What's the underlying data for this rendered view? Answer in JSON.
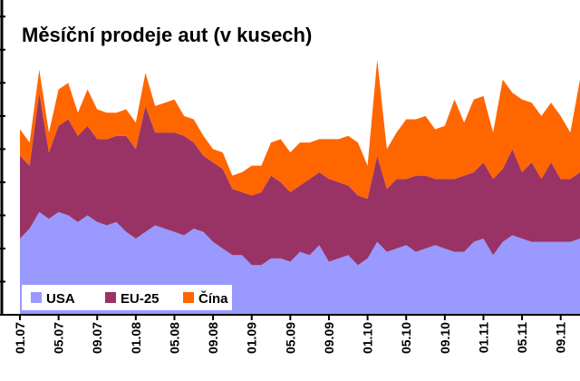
{
  "chart_data": {
    "type": "area",
    "stacked": true,
    "title": "Měsíční prodeje aut (v kusech)",
    "xlabel": "",
    "ylabel": "",
    "grid": false,
    "legend_position": "bottom-left",
    "x_tick_labels": [
      "01.07",
      "05.07",
      "09.07",
      "01.08",
      "05.08",
      "09.08",
      "01.09",
      "05.09",
      "09.09",
      "01.10",
      "05.10",
      "09.10",
      "01.11",
      "05.11",
      "09.11"
    ],
    "x": [
      "01.07",
      "02.07",
      "03.07",
      "04.07",
      "05.07",
      "06.07",
      "07.07",
      "08.07",
      "09.07",
      "10.07",
      "11.07",
      "12.07",
      "01.08",
      "02.08",
      "03.08",
      "04.08",
      "05.08",
      "06.08",
      "07.08",
      "08.08",
      "09.08",
      "10.08",
      "11.08",
      "12.08",
      "01.09",
      "02.09",
      "03.09",
      "04.09",
      "05.09",
      "06.09",
      "07.09",
      "08.09",
      "09.09",
      "10.09",
      "11.09",
      "12.09",
      "01.10",
      "02.10",
      "03.10",
      "04.10",
      "05.10",
      "06.10",
      "07.10",
      "08.10",
      "09.10",
      "10.10",
      "11.10",
      "12.10",
      "01.11",
      "02.11",
      "03.11",
      "04.11",
      "05.11",
      "06.11",
      "07.11",
      "08.11",
      "09.11",
      "10.11",
      "11.11"
    ],
    "series": [
      {
        "name": "USA",
        "color": "#9999ff",
        "values": [
          2.3,
          2.6,
          3.1,
          2.9,
          3.1,
          3.0,
          2.8,
          3.0,
          2.8,
          2.7,
          2.8,
          2.5,
          2.3,
          2.5,
          2.7,
          2.6,
          2.5,
          2.4,
          2.6,
          2.5,
          2.2,
          2.0,
          1.8,
          1.8,
          1.5,
          1.5,
          1.7,
          1.7,
          1.6,
          1.9,
          1.8,
          2.1,
          1.6,
          1.7,
          1.8,
          1.5,
          1.7,
          2.2,
          1.9,
          2.0,
          2.1,
          1.9,
          2.0,
          2.1,
          2.0,
          1.9,
          1.9,
          2.2,
          2.3,
          1.8,
          2.2,
          2.4,
          2.3,
          2.2,
          2.2,
          2.2,
          2.2,
          2.2,
          2.3
        ]
      },
      {
        "name": "EU-25",
        "color": "#993366",
        "values": [
          2.5,
          1.9,
          3.6,
          2.0,
          2.6,
          2.9,
          2.6,
          2.7,
          2.5,
          2.6,
          2.6,
          2.9,
          2.7,
          3.8,
          2.8,
          2.9,
          3.0,
          3.0,
          2.6,
          2.3,
          2.4,
          2.4,
          2.0,
          1.9,
          2.1,
          2.2,
          2.5,
          2.3,
          2.1,
          2.0,
          2.3,
          2.2,
          2.5,
          2.3,
          2.1,
          2.1,
          1.8,
          2.6,
          1.9,
          2.1,
          2.0,
          2.3,
          2.2,
          2.0,
          2.1,
          2.2,
          2.3,
          2.1,
          2.3,
          2.3,
          2.2,
          2.6,
          2.0,
          2.4,
          1.9,
          2.4,
          1.9,
          1.9,
          2.0
        ]
      },
      {
        "name": "Čína",
        "color": "#ff6600",
        "values": [
          0.8,
          0.7,
          0.7,
          0.6,
          1.1,
          1.1,
          0.7,
          1.1,
          0.9,
          0.8,
          0.7,
          0.8,
          0.8,
          1.0,
          0.8,
          0.9,
          1.0,
          0.6,
          0.7,
          0.6,
          0.4,
          0.5,
          0.4,
          0.6,
          0.9,
          0.8,
          1.0,
          1.3,
          1.2,
          1.3,
          1.1,
          1.0,
          1.2,
          1.3,
          1.5,
          1.6,
          1.0,
          2.9,
          1.2,
          1.4,
          1.8,
          1.7,
          1.8,
          1.5,
          1.6,
          2.4,
          1.6,
          2.2,
          2.0,
          1.4,
          2.7,
          1.7,
          2.2,
          1.8,
          1.9,
          1.8,
          1.9,
          1.4,
          2.8
        ]
      }
    ],
    "ylim": [
      0,
      9.5
    ]
  }
}
